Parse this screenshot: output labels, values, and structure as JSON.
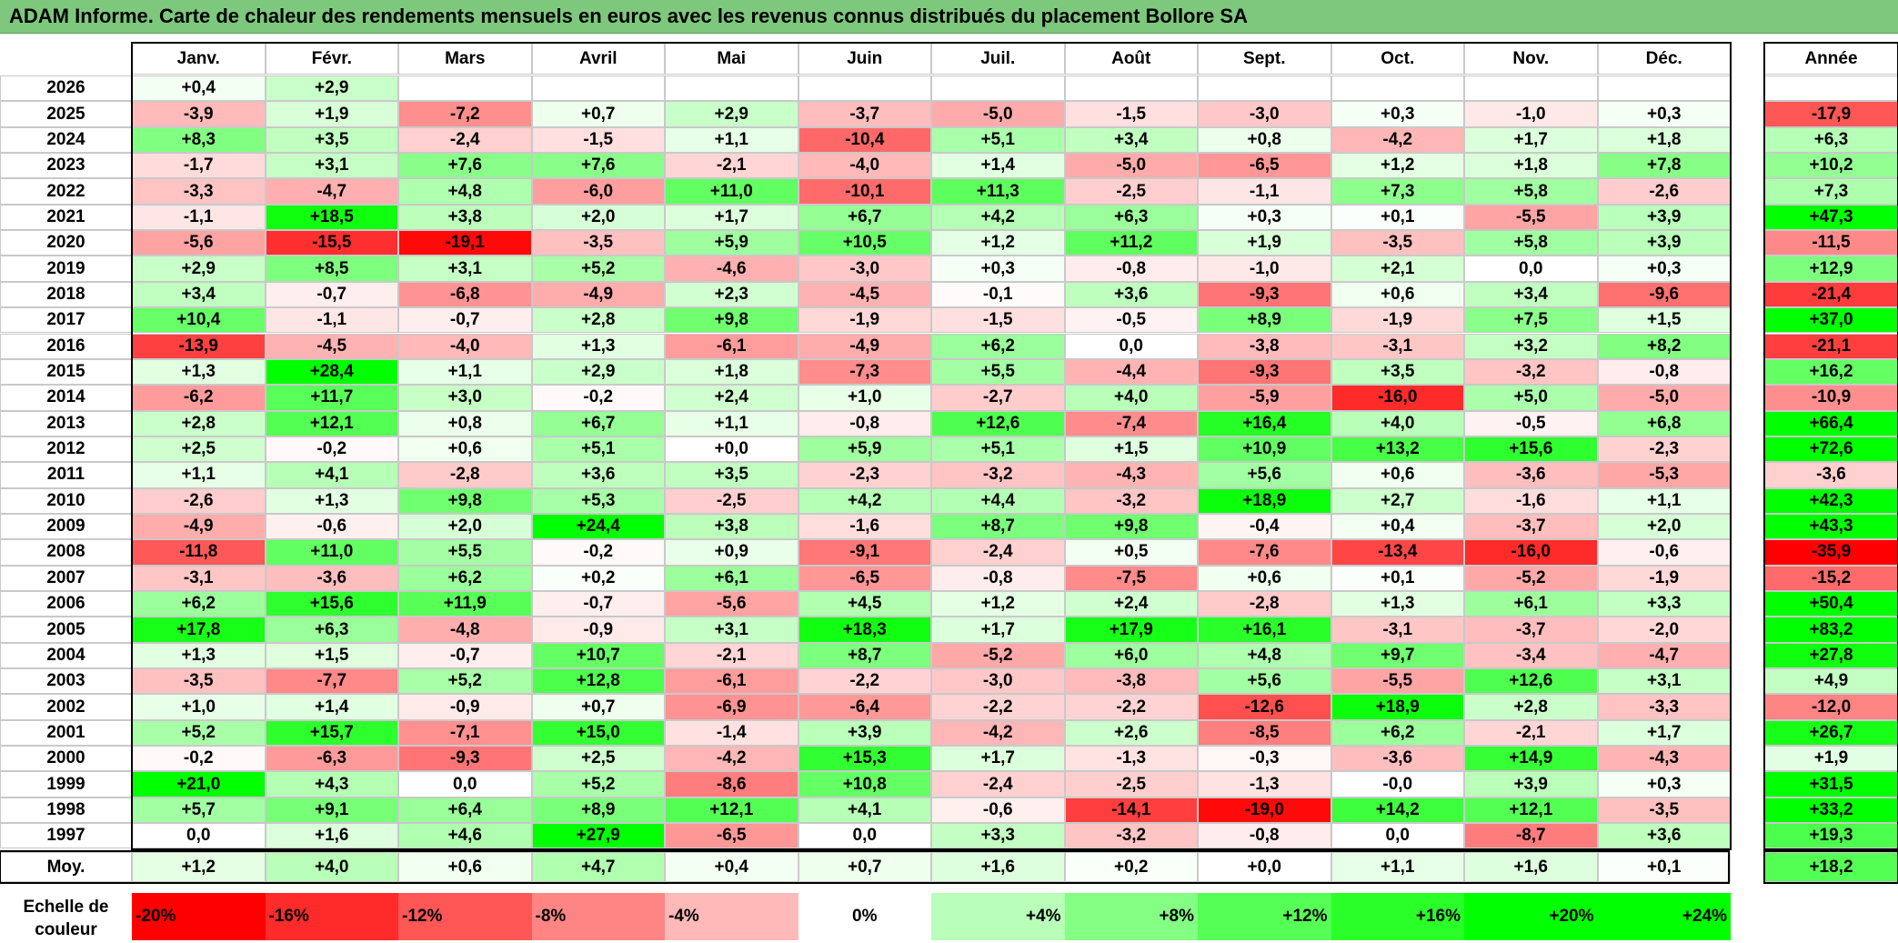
{
  "title": "ADAM Informe. Carte de chaleur des rendements mensuels en euros avec les revenus connus distribués du placement Bollore SA",
  "chart_data": {
    "type": "heatmap",
    "title": "ADAM Informe. Carte de chaleur des rendements mensuels en euros avec les revenus connus distribués du placement Bollore SA",
    "months": [
      "Janv.",
      "Févr.",
      "Mars",
      "Avril",
      "Mai",
      "Juin",
      "Juil.",
      "Août",
      "Sept.",
      "Oct.",
      "Nov.",
      "Déc."
    ],
    "year_header": "Année",
    "rows": [
      {
        "year": "2026",
        "values": [
          "+0,4",
          "+2,9",
          "",
          "",
          "",
          "",
          "",
          "",
          "",
          "",
          "",
          ""
        ],
        "annual": ""
      },
      {
        "year": "2025",
        "values": [
          "-3,9",
          "+1,9",
          "-7,2",
          "+0,7",
          "+2,9",
          "-3,7",
          "-5,0",
          "-1,5",
          "-3,0",
          "+0,3",
          "-1,0",
          "+0,3"
        ],
        "annual": "-17,9"
      },
      {
        "year": "2024",
        "values": [
          "+8,3",
          "+3,5",
          "-2,4",
          "-1,5",
          "+1,1",
          "-10,4",
          "+5,1",
          "+3,4",
          "+0,8",
          "-4,2",
          "+1,7",
          "+1,8"
        ],
        "annual": "+6,3"
      },
      {
        "year": "2023",
        "values": [
          "-1,7",
          "+3,1",
          "+7,6",
          "+7,6",
          "-2,1",
          "-4,0",
          "+1,4",
          "-5,0",
          "-6,5",
          "+1,2",
          "+1,8",
          "+7,8"
        ],
        "annual": "+10,2"
      },
      {
        "year": "2022",
        "values": [
          "-3,3",
          "-4,7",
          "+4,8",
          "-6,0",
          "+11,0",
          "-10,1",
          "+11,3",
          "-2,5",
          "-1,1",
          "+7,3",
          "+5,8",
          "-2,6"
        ],
        "annual": "+7,3"
      },
      {
        "year": "2021",
        "values": [
          "-1,1",
          "+18,5",
          "+3,8",
          "+2,0",
          "+1,7",
          "+6,7",
          "+4,2",
          "+6,3",
          "+0,3",
          "+0,1",
          "-5,5",
          "+3,9"
        ],
        "annual": "+47,3"
      },
      {
        "year": "2020",
        "values": [
          "-5,6",
          "-15,5",
          "-19,1",
          "-3,5",
          "+5,9",
          "+10,5",
          "+1,2",
          "+11,2",
          "+1,9",
          "-3,5",
          "+5,8",
          "+3,9"
        ],
        "annual": "-11,5"
      },
      {
        "year": "2019",
        "values": [
          "+2,9",
          "+8,5",
          "+3,1",
          "+5,2",
          "-4,6",
          "-3,0",
          "+0,3",
          "-0,8",
          "-1,0",
          "+2,1",
          "0,0",
          "+0,3"
        ],
        "annual": "+12,9"
      },
      {
        "year": "2018",
        "values": [
          "+3,4",
          "-0,7",
          "-6,8",
          "-4,9",
          "+2,3",
          "-4,5",
          "-0,1",
          "+3,6",
          "-9,3",
          "+0,6",
          "+3,4",
          "-9,6"
        ],
        "annual": "-21,4"
      },
      {
        "year": "2017",
        "values": [
          "+10,4",
          "-1,1",
          "-0,7",
          "+2,8",
          "+9,8",
          "-1,9",
          "-1,5",
          "-0,5",
          "+8,9",
          "-1,9",
          "+7,5",
          "+1,5"
        ],
        "annual": "+37,0"
      },
      {
        "year": "2016",
        "values": [
          "-13,9",
          "-4,5",
          "-4,0",
          "+1,3",
          "-6,1",
          "-4,9",
          "+6,2",
          "0,0",
          "-3,8",
          "-3,1",
          "+3,2",
          "+8,2"
        ],
        "annual": "-21,1"
      },
      {
        "year": "2015",
        "values": [
          "+1,3",
          "+28,4",
          "+1,1",
          "+2,9",
          "+1,8",
          "-7,3",
          "+5,5",
          "-4,4",
          "-9,3",
          "+3,5",
          "-3,2",
          "-0,8"
        ],
        "annual": "+16,2"
      },
      {
        "year": "2014",
        "values": [
          "-6,2",
          "+11,7",
          "+3,0",
          "-0,2",
          "+2,4",
          "+1,0",
          "-2,7",
          "+4,0",
          "-5,9",
          "-16,0",
          "+5,0",
          "-5,0"
        ],
        "annual": "-10,9"
      },
      {
        "year": "2013",
        "values": [
          "+2,8",
          "+12,1",
          "+0,8",
          "+6,7",
          "+1,1",
          "-0,8",
          "+12,6",
          "-7,4",
          "+16,4",
          "+4,0",
          "-0,5",
          "+6,8"
        ],
        "annual": "+66,4"
      },
      {
        "year": "2012",
        "values": [
          "+2,5",
          "-0,2",
          "+0,6",
          "+5,1",
          "+0,0",
          "+5,9",
          "+5,1",
          "+1,5",
          "+10,9",
          "+13,2",
          "+15,6",
          "-2,3"
        ],
        "annual": "+72,6"
      },
      {
        "year": "2011",
        "values": [
          "+1,1",
          "+4,1",
          "-2,8",
          "+3,6",
          "+3,5",
          "-2,3",
          "-3,2",
          "-4,3",
          "+5,6",
          "+0,6",
          "-3,6",
          "-5,3"
        ],
        "annual": "-3,6"
      },
      {
        "year": "2010",
        "values": [
          "-2,6",
          "+1,3",
          "+9,8",
          "+5,3",
          "-2,5",
          "+4,2",
          "+4,4",
          "-3,2",
          "+18,9",
          "+2,7",
          "-1,6",
          "+1,1"
        ],
        "annual": "+42,3"
      },
      {
        "year": "2009",
        "values": [
          "-4,9",
          "-0,6",
          "+2,0",
          "+24,4",
          "+3,8",
          "-1,6",
          "+8,7",
          "+9,8",
          "-0,4",
          "+0,4",
          "-3,7",
          "+2,0"
        ],
        "annual": "+43,3"
      },
      {
        "year": "2008",
        "values": [
          "-11,8",
          "+11,0",
          "+5,5",
          "-0,2",
          "+0,9",
          "-9,1",
          "-2,4",
          "+0,5",
          "-7,6",
          "-13,4",
          "-16,0",
          "-0,6"
        ],
        "annual": "-35,9"
      },
      {
        "year": "2007",
        "values": [
          "-3,1",
          "-3,6",
          "+6,2",
          "+0,2",
          "+6,1",
          "-6,5",
          "-0,8",
          "-7,5",
          "+0,6",
          "+0,1",
          "-5,2",
          "-1,9"
        ],
        "annual": "-15,2"
      },
      {
        "year": "2006",
        "values": [
          "+6,2",
          "+15,6",
          "+11,9",
          "-0,7",
          "-5,6",
          "+4,5",
          "+1,2",
          "+2,4",
          "-2,8",
          "+1,3",
          "+6,1",
          "+3,3"
        ],
        "annual": "+50,4"
      },
      {
        "year": "2005",
        "values": [
          "+17,8",
          "+6,3",
          "-4,8",
          "-0,9",
          "+3,1",
          "+18,3",
          "+1,7",
          "+17,9",
          "+16,1",
          "-3,1",
          "-3,7",
          "-2,0"
        ],
        "annual": "+83,2"
      },
      {
        "year": "2004",
        "values": [
          "+1,3",
          "+1,5",
          "-0,7",
          "+10,7",
          "-2,1",
          "+8,7",
          "-5,2",
          "+6,0",
          "+4,8",
          "+9,7",
          "-3,4",
          "-4,7"
        ],
        "annual": "+27,8"
      },
      {
        "year": "2003",
        "values": [
          "-3,5",
          "-7,7",
          "+5,2",
          "+12,8",
          "-6,1",
          "-2,2",
          "-3,0",
          "-3,8",
          "+5,6",
          "-5,5",
          "+12,6",
          "+3,1"
        ],
        "annual": "+4,9"
      },
      {
        "year": "2002",
        "values": [
          "+1,0",
          "+1,4",
          "-0,9",
          "+0,7",
          "-6,9",
          "-6,4",
          "-2,2",
          "-2,2",
          "-12,6",
          "+18,9",
          "+2,8",
          "-3,3"
        ],
        "annual": "-12,0"
      },
      {
        "year": "2001",
        "values": [
          "+5,2",
          "+15,7",
          "-7,1",
          "+15,0",
          "-1,4",
          "+3,9",
          "-4,2",
          "+2,6",
          "-8,5",
          "+6,2",
          "-2,1",
          "+1,7"
        ],
        "annual": "+26,7"
      },
      {
        "year": "2000",
        "values": [
          "-0,2",
          "-6,3",
          "-9,3",
          "+2,5",
          "-4,2",
          "+15,3",
          "+1,7",
          "-1,3",
          "-0,3",
          "-3,6",
          "+14,9",
          "-4,3"
        ],
        "annual": "+1,9"
      },
      {
        "year": "1999",
        "values": [
          "+21,0",
          "+4,3",
          "0,0",
          "+5,2",
          "-8,6",
          "+10,8",
          "-2,4",
          "-2,5",
          "-1,3",
          "-0,0",
          "+3,9",
          "+0,3"
        ],
        "annual": "+31,5"
      },
      {
        "year": "1998",
        "values": [
          "+5,7",
          "+9,1",
          "+6,4",
          "+8,9",
          "+12,1",
          "+4,1",
          "-0,6",
          "-14,1",
          "-19,0",
          "+14,2",
          "+12,1",
          "-3,5"
        ],
        "annual": "+33,2"
      },
      {
        "year": "1997",
        "values": [
          "0,0",
          "+1,6",
          "+4,6",
          "+27,9",
          "-6,5",
          "0,0",
          "+3,3",
          "-3,2",
          "-0,8",
          "0,0",
          "-8,7",
          "+3,6"
        ],
        "annual": "+19,3"
      }
    ],
    "average": {
      "label": "Moy.",
      "values": [
        "+1,2",
        "+4,0",
        "+0,6",
        "+4,7",
        "+0,4",
        "+0,7",
        "+1,6",
        "+0,2",
        "+0,0",
        "+1,1",
        "+1,6",
        "+0,1"
      ],
      "annual": "+18,2"
    },
    "scale": {
      "label_line1": "Echelle de",
      "label_line2": "couleur",
      "stops": [
        "-20%",
        "-16%",
        "-12%",
        "-8%",
        "-4%",
        "0%",
        "+4%",
        "+8%",
        "+12%",
        "+16%",
        "+20%",
        "+24%"
      ],
      "values": [
        -20,
        -16,
        -12,
        -8,
        -4,
        0,
        4,
        8,
        12,
        16,
        20,
        24
      ]
    },
    "colors": {
      "negative_max": "#ff0000",
      "neutral": "#ffffff",
      "positive_max": "#00ff00",
      "title_bg": "#7dc87d"
    }
  }
}
